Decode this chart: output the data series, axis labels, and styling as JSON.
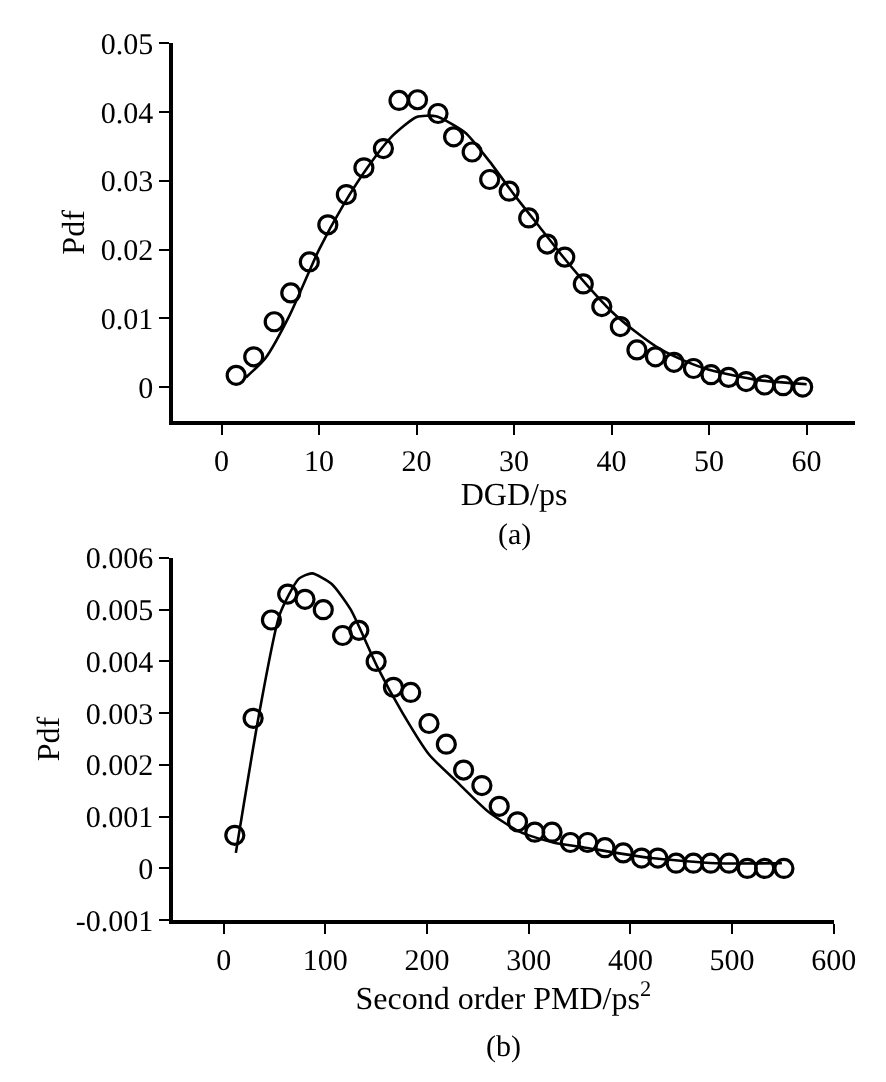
{
  "chart_data": [
    {
      "type": "scatter",
      "xlabel": "DGD/ps",
      "ylabel": "Pdf",
      "annotations": [
        "(a)"
      ],
      "xlim": [
        -5,
        65
      ],
      "ylim": [
        -0.005,
        0.05
      ],
      "xticks": [
        0,
        10,
        20,
        30,
        40,
        50,
        60
      ],
      "yticks": [
        0,
        0.01,
        0.02,
        0.03,
        0.04,
        0.05
      ],
      "series": [
        {
          "marker": "circle",
          "color": "#000000",
          "x": [
            1.5,
            3.3,
            5.4,
            7.1,
            9,
            10.9,
            12.8,
            14.6,
            16.6,
            18.2,
            20.1,
            22.2,
            23.8,
            25.7,
            27.5,
            29.5,
            31.5,
            33.4,
            35.2,
            37.1,
            39,
            40.9,
            42.6,
            44.5,
            46.4,
            48.4,
            50.2,
            52,
            53.8,
            55.7,
            57.6,
            59.6
          ],
          "values": [
            0.0017,
            0.0044,
            0.0095,
            0.0137,
            0.0182,
            0.0236,
            0.028,
            0.0319,
            0.0347,
            0.0417,
            0.0418,
            0.0398,
            0.0364,
            0.0342,
            0.0302,
            0.0285,
            0.0246,
            0.0208,
            0.0189,
            0.015,
            0.0117,
            0.0088,
            0.0054,
            0.0044,
            0.0036,
            0.0027,
            0.0018,
            0.0014,
            0.0008,
            0.0003,
            0.0002,
            0
          ]
        },
        {
          "type": "line",
          "marker": "none",
          "line_style": "solid",
          "color": "#000000",
          "x": [
            2.5,
            4.5,
            7,
            10,
            12.5,
            15,
            17.5,
            20,
            22,
            25,
            27.5,
            30,
            32.5,
            35,
            37.5,
            40,
            42.5,
            45,
            47.5,
            50,
            55,
            60
          ],
          "values": [
            0.0014,
            0.0042,
            0.0105,
            0.02,
            0.0265,
            0.032,
            0.0365,
            0.0393,
            0.0394,
            0.037,
            0.0328,
            0.028,
            0.0235,
            0.019,
            0.0148,
            0.011,
            0.008,
            0.0055,
            0.0038,
            0.0025,
            0.001,
            0.0004
          ]
        }
      ]
    },
    {
      "type": "scatter",
      "xlabel": "Second order PMD/ps$^{2}$",
      "ylabel": "Pdf",
      "annotations": [
        "(b)"
      ],
      "xlim": [
        -50,
        600
      ],
      "ylim": [
        -0.001,
        0.006
      ],
      "xticks": [
        0,
        100,
        200,
        300,
        400,
        500,
        600
      ],
      "yticks": [
        -0.001,
        0,
        0.001,
        0.002,
        0.003,
        0.004,
        0.005,
        0.006
      ],
      "series": [
        {
          "marker": "circle",
          "color": "#000000",
          "x": [
            11,
            29,
            47,
            63,
            80,
            98,
            117,
            133,
            150,
            167,
            184,
            202,
            219,
            236,
            254,
            271,
            289,
            306,
            323,
            341,
            358,
            375,
            393,
            411,
            427,
            445,
            462,
            479,
            497,
            515,
            532,
            551
          ],
          "values": [
            0.00064,
            0.0029,
            0.0048,
            0.0053,
            0.0052,
            0.005,
            0.0045,
            0.0046,
            0.004,
            0.0035,
            0.0034,
            0.0028,
            0.0024,
            0.0019,
            0.0016,
            0.0012,
            0.0009,
            0.0007,
            0.0007,
            0.0005,
            0.0005,
            0.0004,
            0.0003,
            0.0002,
            0.0002,
            0.0001,
            0.0001,
            0.0001,
            0.0001,
            0,
            0,
            0
          ]
        },
        {
          "type": "line",
          "marker": "none",
          "line_style": "solid",
          "color": "#000000",
          "x": [
            12,
            35,
            55,
            74,
            87,
            106,
            125,
            151,
            176,
            202,
            228,
            260,
            292,
            324,
            356,
            420,
            484,
            549
          ],
          "values": [
            0.0003,
            0.003,
            0.0049,
            0.0056,
            0.0057,
            0.0055,
            0.005,
            0.0039,
            0.003,
            0.0022,
            0.0017,
            0.0011,
            0.0007,
            0.0005,
            0.0004,
            0.0002,
            0.0001,
            0.0001
          ]
        }
      ]
    }
  ]
}
